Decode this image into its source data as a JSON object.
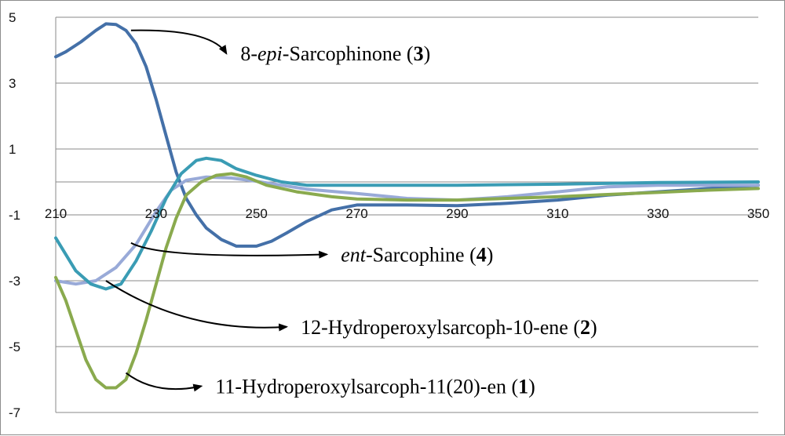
{
  "chart_data": {
    "type": "line",
    "title": "",
    "xlabel": "",
    "ylabel": "",
    "xlim": [
      210,
      350
    ],
    "ylim": [
      -7,
      5
    ],
    "x_ticks": [
      "210",
      "230",
      "250",
      "270",
      "290",
      "310",
      "330",
      "350"
    ],
    "y_ticks": [
      "5",
      "3",
      "1",
      "-1",
      "-3",
      "-5",
      "-7"
    ],
    "grid": "horizontal",
    "legend": "none (curves labelled by arrow annotations)",
    "series": [
      {
        "key": "s3",
        "color": "#4470a8",
        "points": [
          [
            210,
            3.8
          ],
          [
            212,
            3.95
          ],
          [
            215,
            4.25
          ],
          [
            218,
            4.6
          ],
          [
            220,
            4.8
          ],
          [
            222,
            4.78
          ],
          [
            224,
            4.6
          ],
          [
            226,
            4.2
          ],
          [
            228,
            3.5
          ],
          [
            230,
            2.5
          ],
          [
            232,
            1.4
          ],
          [
            234,
            0.3
          ],
          [
            236,
            -0.5
          ],
          [
            238,
            -1.0
          ],
          [
            240,
            -1.4
          ],
          [
            243,
            -1.75
          ],
          [
            246,
            -1.95
          ],
          [
            250,
            -1.95
          ],
          [
            253,
            -1.8
          ],
          [
            256,
            -1.55
          ],
          [
            260,
            -1.2
          ],
          [
            265,
            -0.85
          ],
          [
            270,
            -0.7
          ],
          [
            280,
            -0.7
          ],
          [
            290,
            -0.72
          ],
          [
            300,
            -0.65
          ],
          [
            310,
            -0.55
          ],
          [
            320,
            -0.4
          ],
          [
            330,
            -0.3
          ],
          [
            340,
            -0.2
          ],
          [
            350,
            -0.1
          ]
        ]
      },
      {
        "key": "s4",
        "color": "#99aad8",
        "points": [
          [
            210,
            -3.0
          ],
          [
            214,
            -3.1
          ],
          [
            218,
            -3.0
          ],
          [
            222,
            -2.6
          ],
          [
            226,
            -1.9
          ],
          [
            230,
            -0.9
          ],
          [
            233,
            -0.25
          ],
          [
            236,
            0.05
          ],
          [
            240,
            0.15
          ],
          [
            245,
            0.12
          ],
          [
            250,
            0.02
          ],
          [
            255,
            -0.1
          ],
          [
            260,
            -0.22
          ],
          [
            270,
            -0.35
          ],
          [
            280,
            -0.5
          ],
          [
            290,
            -0.55
          ],
          [
            300,
            -0.45
          ],
          [
            310,
            -0.3
          ],
          [
            320,
            -0.15
          ],
          [
            330,
            -0.1
          ],
          [
            340,
            -0.1
          ],
          [
            350,
            -0.1
          ]
        ]
      },
      {
        "key": "s2",
        "color": "#3a9cb4",
        "points": [
          [
            210,
            -1.7
          ],
          [
            212,
            -2.2
          ],
          [
            214,
            -2.7
          ],
          [
            217,
            -3.1
          ],
          [
            220,
            -3.25
          ],
          [
            223,
            -3.1
          ],
          [
            226,
            -2.4
          ],
          [
            229,
            -1.5
          ],
          [
            232,
            -0.5
          ],
          [
            235,
            0.25
          ],
          [
            238,
            0.65
          ],
          [
            240,
            0.72
          ],
          [
            243,
            0.65
          ],
          [
            246,
            0.4
          ],
          [
            250,
            0.2
          ],
          [
            255,
            0.0
          ],
          [
            260,
            -0.1
          ],
          [
            270,
            -0.1
          ],
          [
            290,
            -0.1
          ],
          [
            310,
            -0.07
          ],
          [
            330,
            -0.02
          ],
          [
            350,
            0.0
          ]
        ]
      },
      {
        "key": "s1",
        "color": "#8aaa4e",
        "points": [
          [
            210,
            -2.9
          ],
          [
            212,
            -3.6
          ],
          [
            214,
            -4.5
          ],
          [
            216,
            -5.4
          ],
          [
            218,
            -6.0
          ],
          [
            220,
            -6.25
          ],
          [
            222,
            -6.25
          ],
          [
            224,
            -6.0
          ],
          [
            226,
            -5.2
          ],
          [
            228,
            -4.2
          ],
          [
            230,
            -3.1
          ],
          [
            232,
            -2.0
          ],
          [
            234,
            -1.1
          ],
          [
            236,
            -0.4
          ],
          [
            239,
            0.0
          ],
          [
            242,
            0.2
          ],
          [
            245,
            0.25
          ],
          [
            248,
            0.15
          ],
          [
            252,
            -0.1
          ],
          [
            258,
            -0.3
          ],
          [
            265,
            -0.45
          ],
          [
            270,
            -0.52
          ],
          [
            280,
            -0.55
          ],
          [
            290,
            -0.55
          ],
          [
            300,
            -0.5
          ],
          [
            310,
            -0.45
          ],
          [
            320,
            -0.38
          ],
          [
            330,
            -0.32
          ],
          [
            340,
            -0.25
          ],
          [
            350,
            -0.2
          ]
        ]
      }
    ],
    "annotations": [
      {
        "key": "a3",
        "prefix": "8-",
        "italic": "epi",
        "rest": "-Sarcophinone (",
        "bold": "3",
        "suffix": ")",
        "from": [
          225,
          4.6
        ],
        "to": [
          244,
          3.9
        ],
        "bend": [
          241,
          4.65
        ]
      },
      {
        "key": "a4",
        "prefix": "",
        "italic": "ent",
        "rest": "-Sarcophine (",
        "bold": "4",
        "suffix": ")",
        "from": [
          225,
          -1.85
        ],
        "to": [
          264,
          -2.2
        ],
        "bend": [
          231,
          -2.35
        ]
      },
      {
        "key": "a2",
        "prefix": "",
        "italic": "",
        "rest": "12-Hydroperoxylsarcoph-10-ene (",
        "bold": "2",
        "suffix": ")",
        "from": [
          220,
          -3.0
        ],
        "to": [
          256,
          -4.4
        ],
        "bend": [
          236,
          -4.6
        ]
      },
      {
        "key": "a1",
        "prefix": "",
        "italic": "",
        "rest": "11-Hydroperoxylsarcoph-11(20)-en (",
        "bold": "1",
        "suffix": ")",
        "from": [
          224,
          -5.8
        ],
        "to": [
          239,
          -6.2
        ],
        "bend": [
          230,
          -6.5
        ]
      }
    ]
  }
}
